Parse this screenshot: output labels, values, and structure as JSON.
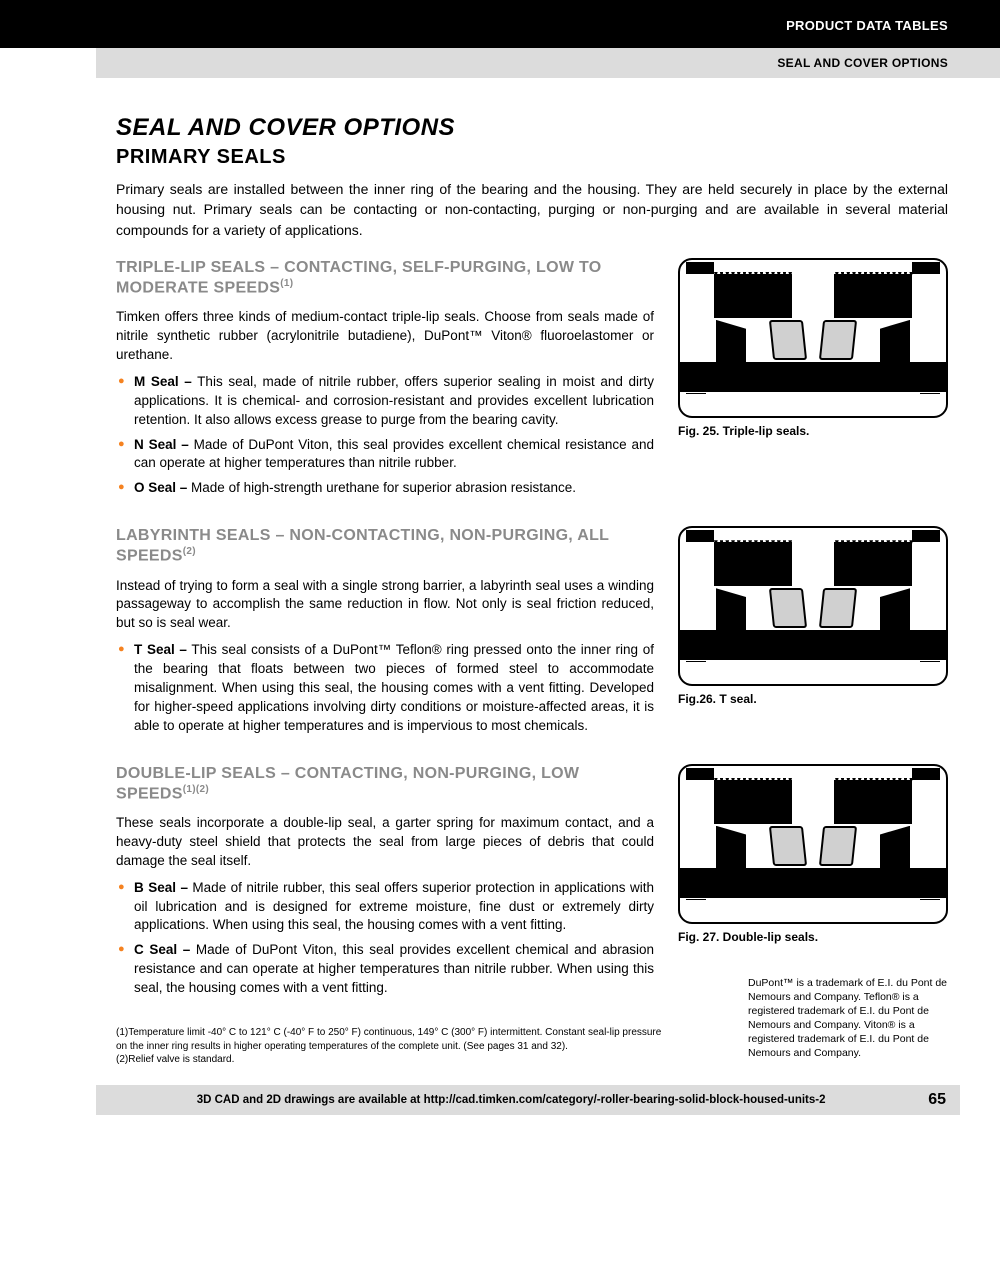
{
  "header": {
    "black": "PRODUCT DATA TABLES",
    "grey": "SEAL AND COVER OPTIONS"
  },
  "title": "SEAL AND COVER OPTIONS",
  "h2": "PRIMARY SEALS",
  "intro": "Primary seals are installed between the inner ring of the bearing and the housing. They are held securely in place by the external housing nut. Primary seals can be contacting or non-contacting, purging or non-purging and are available in several material compounds for a variety of applications.",
  "sections": [
    {
      "heading": "TRIPLE-LIP SEALS – CONTACTING, SELF-PURGING, LOW TO MODERATE SPEEDS",
      "sup": "(1)",
      "body": "Timken offers three kinds of medium-contact triple-lip seals. Choose from seals made of nitrile synthetic rubber (acrylonitrile butadiene), DuPont™ Viton® fluoroelastomer or urethane.",
      "items": [
        {
          "b": "M Seal –",
          "t": " This seal, made of nitrile rubber, offers superior sealing in moist and dirty applications. It is chemical- and corrosion-resistant and provides excellent lubrication retention. It also allows excess grease to purge from the bearing cavity."
        },
        {
          "b": "N Seal –",
          "t": " Made of DuPont Viton, this seal provides excellent chemical resistance and can operate at higher temperatures than nitrile rubber."
        },
        {
          "b": "O Seal –",
          "t": " Made of high-strength urethane for superior abrasion resistance."
        }
      ],
      "caption": "Fig. 25. Triple-lip seals."
    },
    {
      "heading": "LABYRINTH SEALS – NON-CONTACTING, NON-PURGING, ALL SPEEDS",
      "sup": "(2)",
      "body": "Instead of trying to form a seal with a single strong barrier, a labyrinth seal uses a winding passageway to accomplish the same reduction in flow. Not only is seal friction reduced, but so is seal wear.",
      "items": [
        {
          "b": "T Seal –",
          "t": " This seal consists of a DuPont™ Teflon® ring pressed onto the inner ring of the bearing that floats between two pieces of formed steel to accommodate misalignment. When using this seal, the housing comes with a vent fitting. Developed for higher-speed applications involving dirty conditions or moisture-affected areas, it is able to operate at higher temperatures and is impervious to most chemicals."
        }
      ],
      "caption": "Fig.26. T seal."
    },
    {
      "heading": "DOUBLE-LIP SEALS – CONTACTING, NON-PURGING, LOW SPEEDS",
      "sup": "(1)(2)",
      "body": "These seals incorporate a double-lip seal, a garter spring for maximum contact, and a heavy-duty steel shield that protects the seal from large pieces of debris that could damage the seal itself.",
      "items": [
        {
          "b": "B Seal –",
          "t": " Made of nitrile rubber, this seal offers superior protection in applications with oil lubrication and is designed for extreme moisture, fine dust or extremely dirty applications. When using this seal, the housing comes with a vent fitting."
        },
        {
          "b": "C Seal –",
          "t": " Made of DuPont Viton, this seal provides excellent chemical and abrasion resistance and can operate at higher temperatures than nitrile rubber. When using this seal, the housing comes with a vent fitting."
        }
      ],
      "caption": "Fig. 27. Double-lip seals."
    }
  ],
  "footnotes": [
    "(1)Temperature limit -40° C to 121° C (-40° F to 250° F) continuous, 149° C (300° F) intermittent. Constant seal-lip pressure on the inner ring results in higher operating temperatures of the complete unit. (See pages 31 and 32).",
    "(2)Relief valve is standard."
  ],
  "trademark": "DuPont™ is a trademark of E.I. du Pont de Nemours and Company. Teflon® is a registered trademark of E.I. du Pont de Nemours and Company. Viton® is a registered trademark of E.I. du Pont de Nemours and Company.",
  "footer": {
    "text": "3D CAD and 2D drawings are available at http://cad.timken.com/category/-roller-bearing-solid-block-housed-units-2",
    "page": "65"
  }
}
